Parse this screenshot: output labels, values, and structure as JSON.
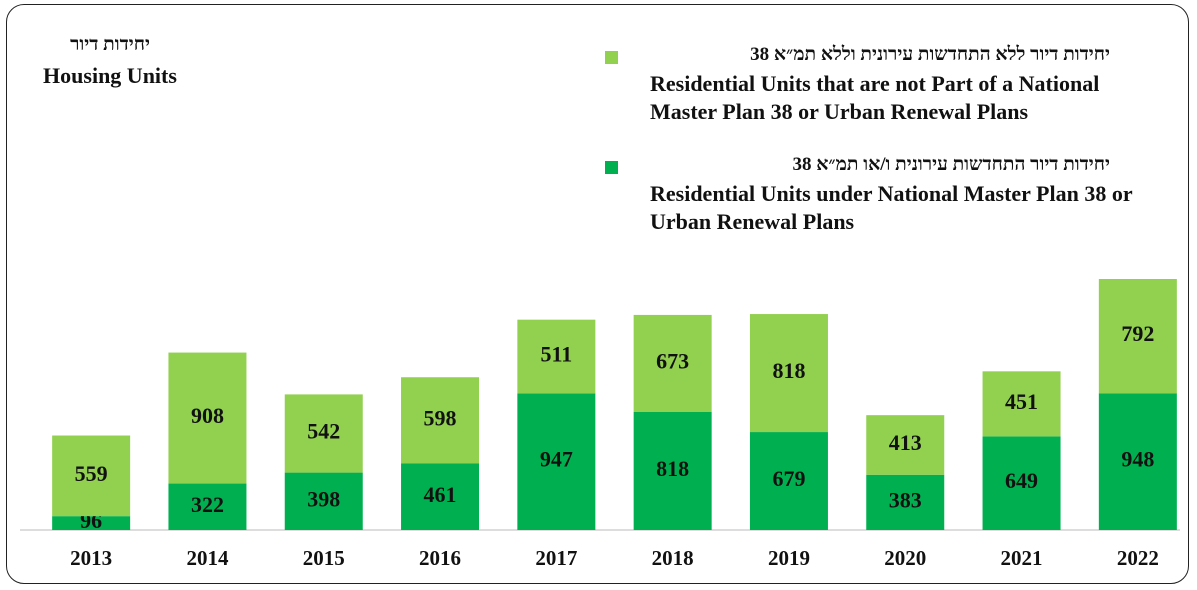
{
  "chart_data": {
    "type": "stacked_bar",
    "axis_title_he": "יחידות דיור",
    "axis_title_en": "Housing Units",
    "categories": [
      "2013",
      "2014",
      "2015",
      "2016",
      "2017",
      "2018",
      "2019",
      "2020",
      "2021",
      "2022"
    ],
    "series": [
      {
        "name": "יחידות דיור התחדשות עירונית ו/או תמ״א 38",
        "name_en": "Residential Units under National Master Plan 38 or Urban Renewal Plans",
        "color": "#00b050",
        "values": [
          96,
          322,
          398,
          461,
          947,
          818,
          679,
          383,
          649,
          948
        ]
      },
      {
        "name": "יחידות דיור ללא התחדשות עירונית וללא תמ״א 38",
        "name_en": "Residential Units that are not Part of a National Master Plan 38 or Urban Renewal Plans",
        "color": "#92d050",
        "values": [
          559,
          908,
          542,
          598,
          511,
          673,
          818,
          413,
          451,
          792
        ]
      }
    ]
  }
}
